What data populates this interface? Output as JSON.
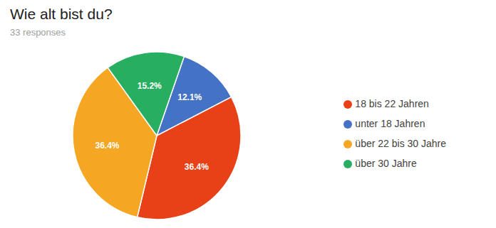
{
  "chart_data": {
    "type": "pie",
    "title": "Wie alt bist du?",
    "subtitle": "33 responses",
    "categories": [
      "unter 18 Jahren",
      "18 bis 22 Jahren",
      "über 22 bis 30 Jahre",
      "über 30 Jahre"
    ],
    "values": [
      12.1,
      36.4,
      36.4,
      15.2
    ],
    "value_labels": [
      "12.1%",
      "36.4%",
      "36.4%",
      "15.2%"
    ],
    "colors": [
      "#4472c4",
      "#e84118",
      "#f5a623",
      "#27ae60"
    ],
    "data_labels": true,
    "legend": "right"
  }
}
